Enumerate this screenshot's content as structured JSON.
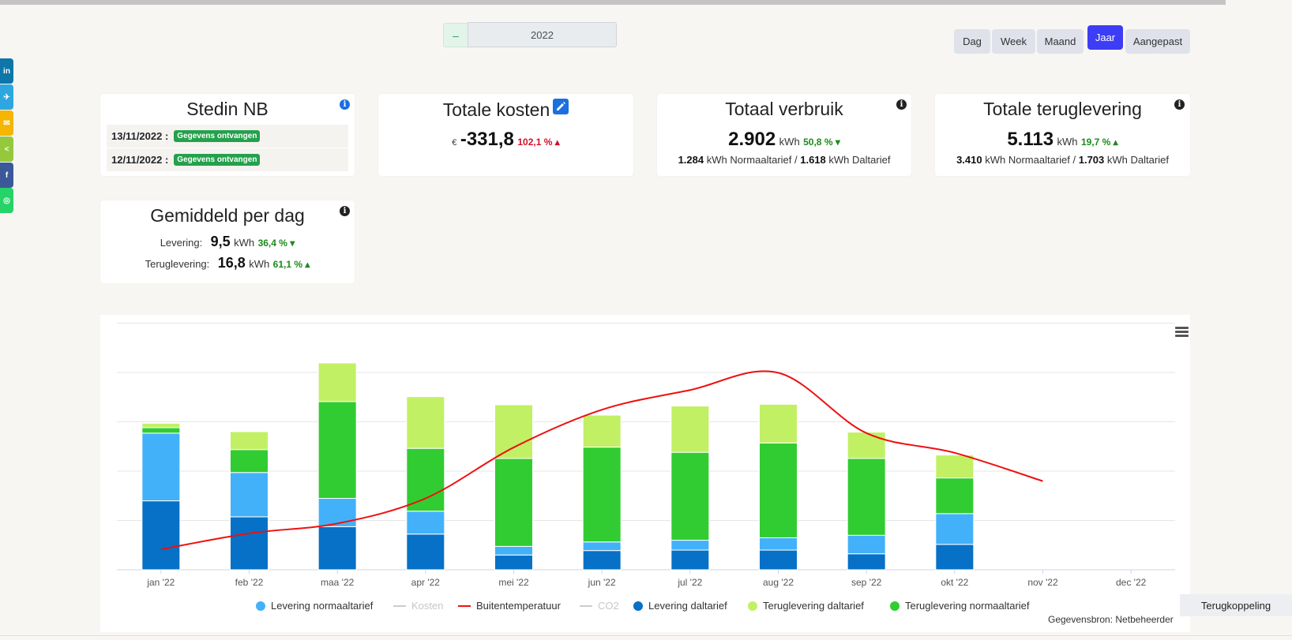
{
  "social": [
    {
      "name": "linkedin-icon",
      "glyph": "in",
      "color": "#0e76a8"
    },
    {
      "name": "twitter-icon",
      "glyph": "✈",
      "color": "#2ea7e0"
    },
    {
      "name": "mail-icon",
      "glyph": "✉",
      "color": "#f5b500"
    },
    {
      "name": "share-icon",
      "glyph": "<",
      "color": "#95c93d"
    },
    {
      "name": "facebook-icon",
      "glyph": "f",
      "color": "#3b5998"
    },
    {
      "name": "whatsapp-icon",
      "glyph": "◎",
      "color": "#25d366"
    }
  ],
  "year_selector": {
    "prev_label": "–",
    "value": "2022"
  },
  "periods": [
    {
      "label": "Dag",
      "active": false
    },
    {
      "label": "Week",
      "active": false
    },
    {
      "label": "Maand",
      "active": false
    },
    {
      "label": "Jaar",
      "active": true
    },
    {
      "label": "Aangepast",
      "active": false
    }
  ],
  "cards": {
    "stedin": {
      "title": "Stedin NB",
      "rows": [
        {
          "date": "13/11/2022 :",
          "badge": "Gegevens ontvangen"
        },
        {
          "date": "12/11/2022 :",
          "badge": "Gegevens ontvangen"
        }
      ]
    },
    "kosten": {
      "title": "Totale kosten",
      "currency": "€",
      "value": "-331,8",
      "pct": "102,1 %"
    },
    "verbruik": {
      "title": "Totaal verbruik",
      "value": "2.902",
      "unit": "kWh",
      "pct": "50,8 %",
      "normaal": "1.284",
      "dal": "1.618",
      "normaal_label": "kWh Normaaltarief /",
      "dal_label": "kWh Daltarief"
    },
    "teruglevering": {
      "title": "Totale teruglevering",
      "value": "5.113",
      "unit": "kWh",
      "pct": "19,7 %",
      "normaal": "3.410",
      "dal": "1.703",
      "normaal_label": "kWh Normaaltarief /",
      "dal_label": "kWh Daltarief"
    },
    "gemiddeld": {
      "title": "Gemiddeld per dag",
      "levering_label": "Levering:",
      "levering_value": "9,5",
      "levering_unit": "kWh",
      "levering_pct": "36,4 %",
      "terug_label": "Teruglevering:",
      "terug_value": "16,8",
      "terug_unit": "kWh",
      "terug_pct": "61,1 %"
    }
  },
  "colors": {
    "levering_normaal": "#42b1fa",
    "levering_dal": "#0671c6",
    "terug_dal": "#c2f064",
    "terug_normaal": "#31cc32",
    "temperatuur": "#ee1010"
  },
  "chart_data": {
    "type": "bar",
    "stacked": true,
    "categories": [
      "jan '22",
      "feb '22",
      "maa '22",
      "apr '22",
      "mei '22",
      "jun '22",
      "jul '22",
      "aug '22",
      "sep '22",
      "okt '22",
      "nov '22",
      "dec '22"
    ],
    "ylim": [
      0,
      1000
    ],
    "grid": true,
    "legend": "bottom-center",
    "series": [
      {
        "name": "Levering daltarief",
        "key": "levering_dal",
        "values": [
          280,
          215,
          175,
          145,
          60,
          78,
          80,
          80,
          65,
          103,
          null,
          null
        ]
      },
      {
        "name": "Levering normaaltarief",
        "key": "levering_normaal",
        "values": [
          275,
          180,
          115,
          93,
          35,
          35,
          40,
          50,
          75,
          125,
          null,
          null
        ]
      },
      {
        "name": "Teruglevering normaaltarief",
        "key": "terug_normaal",
        "values": [
          22,
          93,
          393,
          255,
          357,
          385,
          357,
          385,
          312,
          145,
          null,
          null
        ]
      },
      {
        "name": "Teruglevering daltarief",
        "key": "terug_dal",
        "values": [
          18,
          73,
          157,
          210,
          218,
          130,
          188,
          157,
          107,
          93,
          null,
          null
        ]
      }
    ],
    "line": {
      "name": "Buitentemperatuur",
      "key": "temperatuur",
      "values": [
        83,
        148,
        188,
        290,
        497,
        650,
        730,
        800,
        555,
        475,
        360,
        null
      ]
    },
    "hidden_series": [
      "Kosten",
      "CO2"
    ],
    "legend_order": [
      {
        "name": "Levering normaaltarief",
        "kind": "dot",
        "key": "levering_normaal"
      },
      {
        "name": "Kosten",
        "kind": "dash",
        "muted": true
      },
      {
        "name": "Buitentemperatuur",
        "kind": "dash",
        "key": "temperatuur"
      },
      {
        "name": "CO2",
        "kind": "dash",
        "muted": true
      },
      {
        "name": "Levering daltarief",
        "kind": "dot",
        "key": "levering_dal"
      },
      {
        "name": "Teruglevering daltarief",
        "kind": "dot",
        "key": "terug_dal"
      },
      {
        "name": "Teruglevering normaaltarief",
        "kind": "dot",
        "key": "terug_normaal"
      }
    ]
  },
  "source": "Gegevensbron: Netbeheerder",
  "feedback_label": "Terugkoppeling"
}
